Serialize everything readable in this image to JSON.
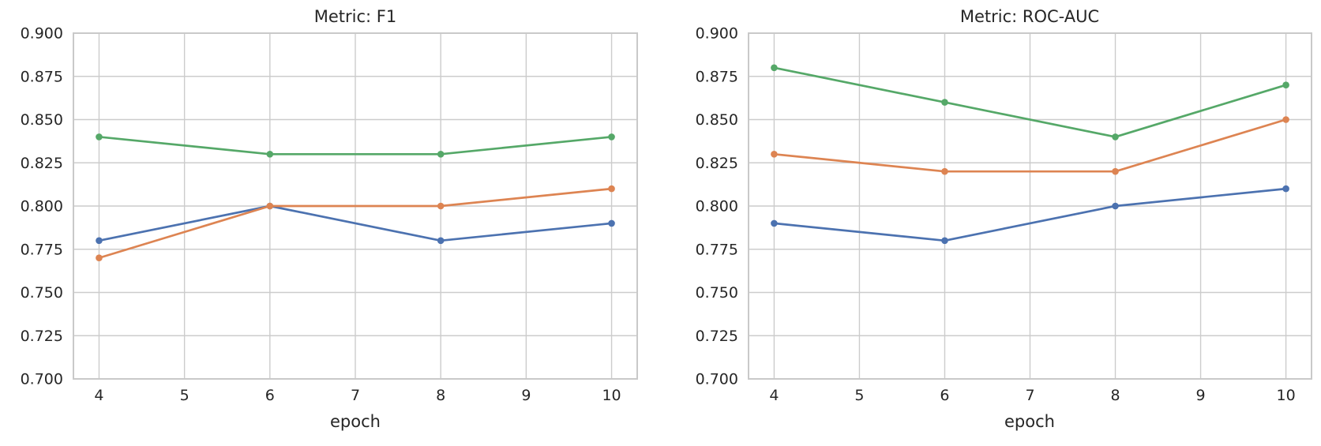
{
  "colors": {
    "background": "#ffffff",
    "text": "#262626",
    "grid": "#cccccc",
    "frame": "#c9c9c9",
    "series_blue": "#4C72B0",
    "series_orange": "#DD8452",
    "series_green": "#55A868"
  },
  "chart_data": [
    {
      "type": "line",
      "title": "Metric: F1",
      "xlabel": "epoch",
      "ylabel": "",
      "x": [
        4,
        6,
        8,
        10
      ],
      "series": [
        {
          "name": "series-blue",
          "color": "#4C72B0",
          "values": [
            0.78,
            0.8,
            0.78,
            0.79
          ]
        },
        {
          "name": "series-orange",
          "color": "#DD8452",
          "values": [
            0.77,
            0.8,
            0.8,
            0.81
          ]
        },
        {
          "name": "series-green",
          "color": "#55A868",
          "values": [
            0.84,
            0.83,
            0.83,
            0.84
          ]
        }
      ],
      "xlim": [
        3.7,
        10.3
      ],
      "ylim": [
        0.7,
        0.9
      ],
      "xticks": [
        4,
        5,
        6,
        7,
        8,
        9,
        10
      ],
      "xtick_labels": [
        "4",
        "5",
        "6",
        "7",
        "8",
        "9",
        "10"
      ],
      "yticks": [
        0.7,
        0.725,
        0.75,
        0.775,
        0.8,
        0.825,
        0.85,
        0.875,
        0.9
      ],
      "ytick_labels": [
        "0.700",
        "0.725",
        "0.750",
        "0.775",
        "0.800",
        "0.825",
        "0.850",
        "0.875",
        "0.900"
      ],
      "grid": true,
      "legend": null
    },
    {
      "type": "line",
      "title": "Metric: ROC-AUC",
      "xlabel": "epoch",
      "ylabel": "",
      "x": [
        4,
        6,
        8,
        10
      ],
      "series": [
        {
          "name": "series-blue",
          "color": "#4C72B0",
          "values": [
            0.79,
            0.78,
            0.8,
            0.81
          ]
        },
        {
          "name": "series-orange",
          "color": "#DD8452",
          "values": [
            0.83,
            0.82,
            0.82,
            0.85
          ]
        },
        {
          "name": "series-green",
          "color": "#55A868",
          "values": [
            0.88,
            0.86,
            0.84,
            0.87
          ]
        }
      ],
      "xlim": [
        3.7,
        10.3
      ],
      "ylim": [
        0.7,
        0.9
      ],
      "xticks": [
        4,
        5,
        6,
        7,
        8,
        9,
        10
      ],
      "xtick_labels": [
        "4",
        "5",
        "6",
        "7",
        "8",
        "9",
        "10"
      ],
      "yticks": [
        0.7,
        0.725,
        0.75,
        0.775,
        0.8,
        0.825,
        0.85,
        0.875,
        0.9
      ],
      "ytick_labels": [
        "0.700",
        "0.725",
        "0.750",
        "0.775",
        "0.800",
        "0.825",
        "0.850",
        "0.875",
        "0.900"
      ],
      "grid": true,
      "legend": null
    }
  ]
}
